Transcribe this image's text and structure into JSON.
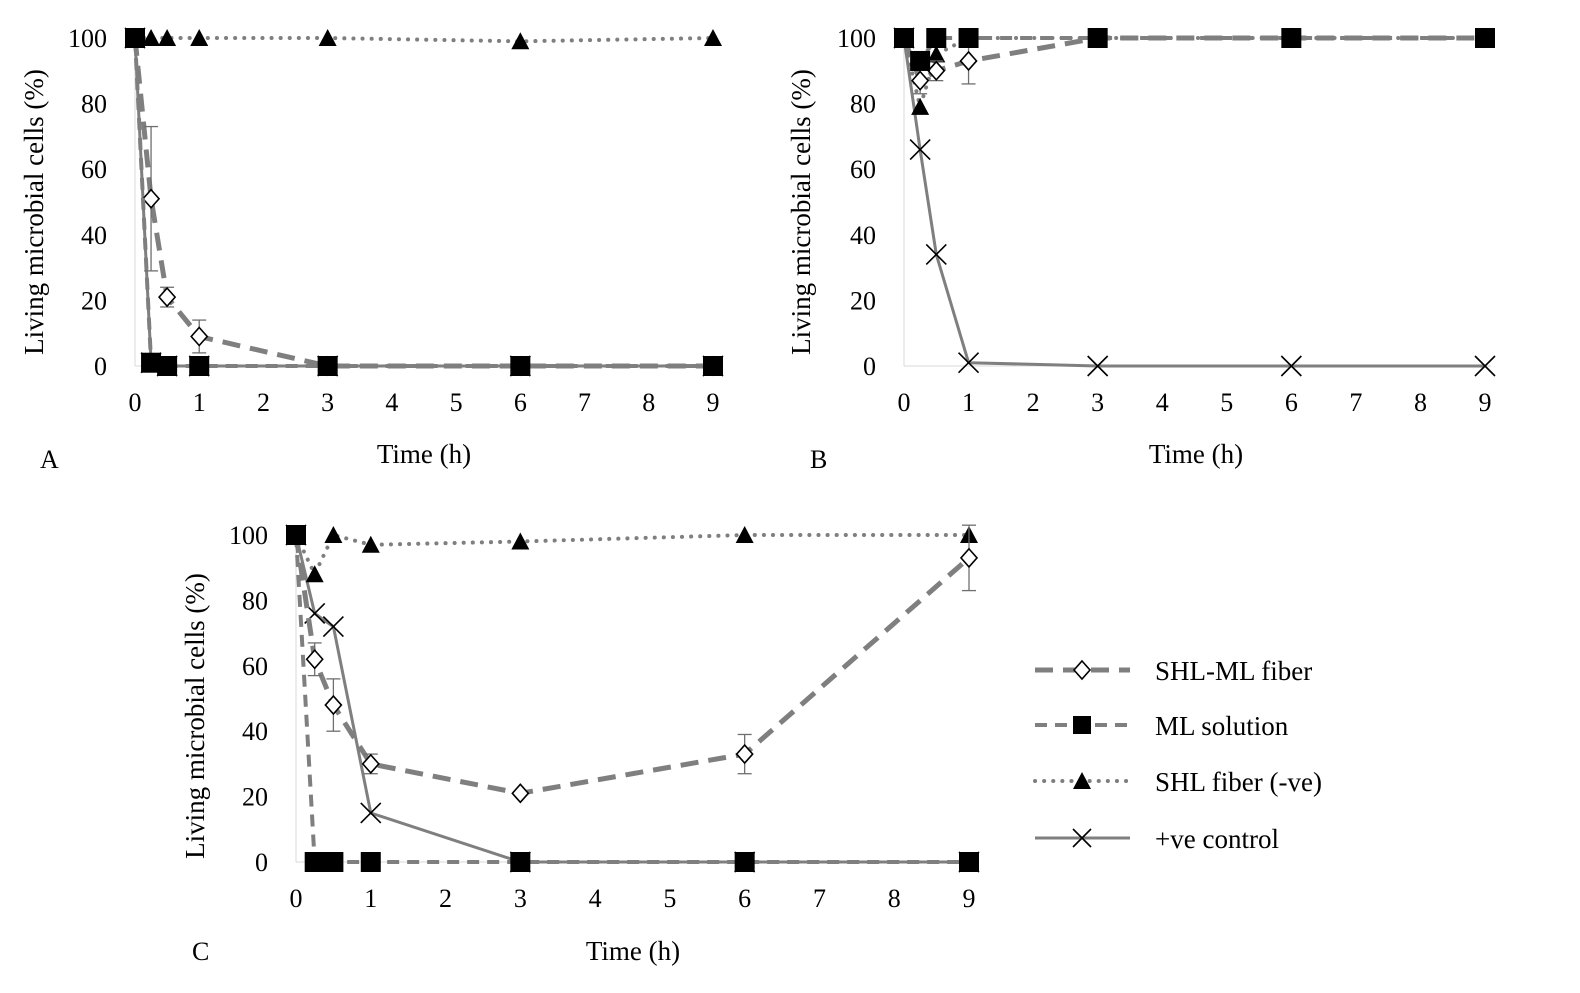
{
  "legend": {
    "placement": "right of panel C",
    "entries": [
      "SHL-ML fiber",
      "ML solution",
      "SHL fiber (-ve)",
      "+ve control"
    ]
  },
  "colors": {
    "series": "#7f7f7f",
    "markers": "#000000"
  },
  "chart_data": [
    {
      "panel": "A",
      "type": "line",
      "xlabel": "Time (h)",
      "ylabel": "Living microbial cells (%)",
      "xlim": [
        0,
        9
      ],
      "ylim": [
        0,
        100
      ],
      "xticks": [
        0,
        1,
        2,
        3,
        4,
        5,
        6,
        7,
        8,
        9
      ],
      "yticks": [
        0,
        20,
        40,
        60,
        80,
        100
      ],
      "grid": false,
      "series": [
        {
          "name": "SHL-ML fiber",
          "x": [
            0,
            0.25,
            0.5,
            1,
            3,
            6,
            9
          ],
          "y": [
            100,
            51,
            21,
            9,
            0,
            0,
            0
          ],
          "err": [
            0,
            22,
            3,
            5,
            0,
            0,
            0
          ]
        },
        {
          "name": "ML solution",
          "x": [
            0,
            0.25,
            0.5,
            1,
            3,
            6,
            9
          ],
          "y": [
            100,
            1,
            0,
            0,
            0,
            0,
            0
          ]
        },
        {
          "name": "SHL fiber (-ve)",
          "x": [
            0,
            0.25,
            0.5,
            1,
            3,
            6,
            9
          ],
          "y": [
            100,
            100,
            100,
            100,
            100,
            99,
            100
          ]
        },
        {
          "name": "+ve control",
          "x": [
            0,
            0.25,
            0.5,
            1,
            3,
            6,
            9
          ],
          "y": [
            100,
            1,
            0,
            0,
            0,
            0,
            0
          ]
        }
      ]
    },
    {
      "panel": "B",
      "type": "line",
      "xlabel": "Time (h)",
      "ylabel": "Living microbial cells (%)",
      "xlim": [
        0,
        9
      ],
      "ylim": [
        0,
        100
      ],
      "xticks": [
        0,
        1,
        2,
        3,
        4,
        5,
        6,
        7,
        8,
        9
      ],
      "yticks": [
        0,
        20,
        40,
        60,
        80,
        100
      ],
      "grid": false,
      "series": [
        {
          "name": "SHL-ML fiber",
          "x": [
            0,
            0.25,
            0.5,
            1,
            3,
            6,
            9
          ],
          "y": [
            100,
            87,
            90,
            93,
            100,
            100,
            100
          ],
          "err": [
            0,
            4,
            3,
            7,
            0,
            0,
            0
          ]
        },
        {
          "name": "ML solution",
          "x": [
            0,
            0.25,
            0.5,
            1,
            3,
            6,
            9
          ],
          "y": [
            100,
            93,
            100,
            100,
            100,
            100,
            100
          ]
        },
        {
          "name": "SHL fiber (-ve)",
          "x": [
            0,
            0.25,
            0.5,
            1,
            3,
            6,
            9
          ],
          "y": [
            100,
            79,
            95,
            100,
            100,
            100,
            100
          ]
        },
        {
          "name": "+ve control",
          "x": [
            0,
            0.25,
            0.5,
            1,
            3,
            6,
            9
          ],
          "y": [
            100,
            66,
            34,
            1,
            0,
            0,
            0
          ]
        }
      ]
    },
    {
      "panel": "C",
      "type": "line",
      "xlabel": "Time (h)",
      "ylabel": "Living microbial cells (%)",
      "xlim": [
        0,
        9
      ],
      "ylim": [
        0,
        100
      ],
      "xticks": [
        0,
        1,
        2,
        3,
        4,
        5,
        6,
        7,
        8,
        9
      ],
      "yticks": [
        0,
        20,
        40,
        60,
        80,
        100
      ],
      "grid": false,
      "series": [
        {
          "name": "SHL-ML fiber",
          "x": [
            0,
            0.25,
            0.5,
            1,
            3,
            6,
            9
          ],
          "y": [
            100,
            62,
            48,
            30,
            21,
            33,
            93
          ],
          "err": [
            0,
            5,
            8,
            3,
            0,
            6,
            10
          ]
        },
        {
          "name": "ML solution",
          "x": [
            0,
            0.25,
            0.5,
            1,
            3,
            6,
            9
          ],
          "y": [
            100,
            0,
            0,
            0,
            0,
            0,
            0
          ]
        },
        {
          "name": "SHL fiber (-ve)",
          "x": [
            0,
            0.25,
            0.5,
            1,
            3,
            6,
            9
          ],
          "y": [
            100,
            88,
            100,
            97,
            98,
            100,
            100
          ]
        },
        {
          "name": "+ve control",
          "x": [
            0,
            0.25,
            0.5,
            1,
            3,
            6,
            9
          ],
          "y": [
            100,
            76,
            72,
            15,
            0,
            0,
            0
          ]
        }
      ]
    }
  ]
}
